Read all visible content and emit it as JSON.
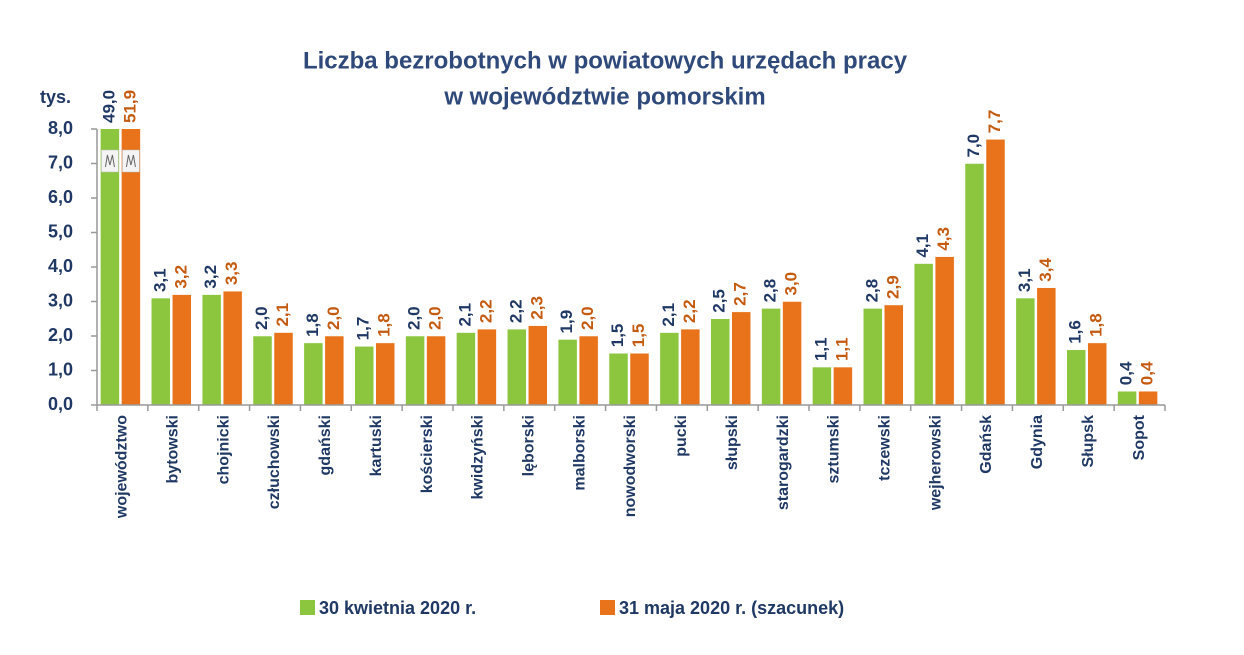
{
  "chart_data": {
    "type": "bar",
    "title": [
      "Liczba bezrobotnych w powiatowych urzędach pracy",
      "w województwie pomorskim"
    ],
    "ylabel": "tys.",
    "categories": [
      "województwo",
      "bytowski",
      "chojnicki",
      "człuchowski",
      "gdański",
      "kartuski",
      "kościerski",
      "kwidzyński",
      "lęborski",
      "malborski",
      "nowodworski",
      "pucki",
      "słupski",
      "starogardzki",
      "sztumski",
      "tczewski",
      "wejherowski",
      "Gdańsk",
      "Gdynia",
      "Słupsk",
      "Sopot"
    ],
    "series": [
      {
        "name": "30 kwietnia 2020 r.",
        "color": "#8cc63e",
        "values": [
          49.0,
          3.1,
          3.2,
          2.0,
          1.8,
          1.7,
          2.0,
          2.1,
          2.2,
          1.9,
          1.5,
          2.1,
          2.5,
          2.8,
          1.1,
          2.8,
          4.1,
          7.0,
          3.1,
          1.6,
          0.4
        ],
        "value_labels": [
          "49,0",
          "3,1",
          "3,2",
          "2,0",
          "1,8",
          "1,7",
          "2,0",
          "2,1",
          "2,2",
          "1,9",
          "1,5",
          "2,1",
          "2,5",
          "2,8",
          "1,1",
          "2,8",
          "4,1",
          "7,0",
          "3,1",
          "1,6",
          "0,4"
        ]
      },
      {
        "name": "31 maja 2020 r. (szacunek)",
        "color": "#e8731a",
        "values": [
          51.9,
          3.2,
          3.3,
          2.1,
          2.0,
          1.8,
          2.0,
          2.2,
          2.3,
          2.0,
          1.5,
          2.2,
          2.7,
          3.0,
          1.1,
          2.9,
          4.3,
          7.7,
          3.4,
          1.8,
          0.4
        ],
        "value_labels": [
          "51,9",
          "3,2",
          "3,3",
          "2,1",
          "2,0",
          "1,8",
          "2,0",
          "2,2",
          "2,3",
          "2,0",
          "1,5",
          "2,2",
          "2,7",
          "3,0",
          "1,1",
          "2,9",
          "4,3",
          "7,7",
          "3,4",
          "1,8",
          "0,4"
        ]
      }
    ],
    "ylim": [
      0,
      8
    ],
    "yticks": [
      {
        "value": 0,
        "label": "0,0"
      },
      {
        "value": 1,
        "label": "1,0"
      },
      {
        "value": 2,
        "label": "2,0"
      },
      {
        "value": 3,
        "label": "3,0"
      },
      {
        "value": 4,
        "label": "4,0"
      },
      {
        "value": 5,
        "label": "5,0"
      },
      {
        "value": 6,
        "label": "6,0"
      },
      {
        "value": 7,
        "label": "7,0"
      },
      {
        "value": 8,
        "label": "8,0"
      }
    ],
    "legend": "bottom"
  }
}
